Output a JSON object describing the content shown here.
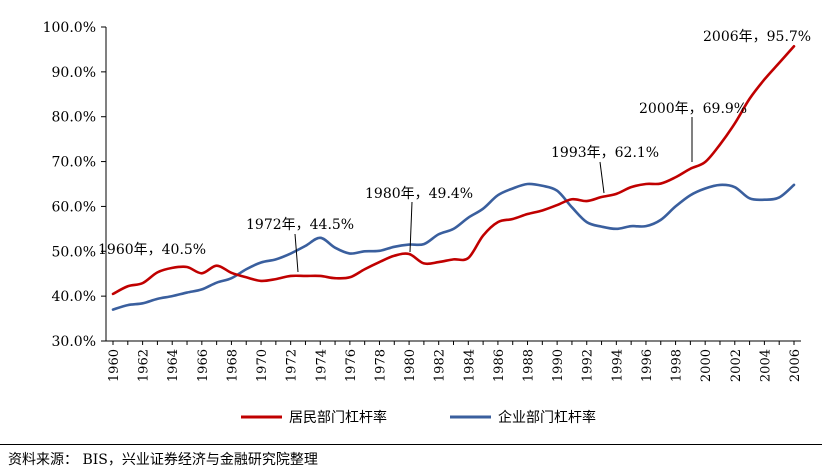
{
  "chart_data": {
    "type": "line",
    "title": "",
    "xlabel": "",
    "ylabel": "",
    "x": [
      1960,
      1961,
      1962,
      1963,
      1964,
      1965,
      1966,
      1967,
      1968,
      1969,
      1970,
      1971,
      1972,
      1973,
      1974,
      1975,
      1976,
      1977,
      1978,
      1979,
      1980,
      1981,
      1982,
      1983,
      1984,
      1985,
      1986,
      1987,
      1988,
      1989,
      1990,
      1991,
      1992,
      1993,
      1994,
      1995,
      1996,
      1997,
      1998,
      1999,
      2000,
      2001,
      2002,
      2003,
      2004,
      2005,
      2006
    ],
    "x_ticks": [
      "1960",
      "1962",
      "1964",
      "1966",
      "1968",
      "1970",
      "1972",
      "1974",
      "1976",
      "1978",
      "1980",
      "1982",
      "1984",
      "1986",
      "1988",
      "1990",
      "1992",
      "1994",
      "1996",
      "1998",
      "2000",
      "2002",
      "2004",
      "2006"
    ],
    "ylim": [
      30,
      100
    ],
    "y_ticks": [
      "30.0%",
      "40.0%",
      "50.0%",
      "60.0%",
      "70.0%",
      "80.0%",
      "90.0%",
      "100.0%"
    ],
    "grid": false,
    "legend_position": "bottom",
    "series": [
      {
        "name": "居民部门杠杆率",
        "color": "#c00000",
        "values": [
          40.5,
          42.2,
          42.9,
          45.3,
          46.3,
          46.5,
          45.1,
          46.8,
          45.2,
          44.2,
          43.4,
          43.8,
          44.5,
          44.5,
          44.5,
          44.0,
          44.2,
          46.0,
          47.6,
          49.0,
          49.4,
          47.3,
          47.6,
          48.2,
          48.5,
          53.5,
          56.5,
          57.2,
          58.3,
          59.1,
          60.3,
          61.6,
          61.2,
          62.1,
          62.8,
          64.3,
          65.0,
          65.1,
          66.5,
          68.4,
          69.9,
          73.8,
          78.5,
          84.0,
          88.3,
          92.0,
          95.7
        ]
      },
      {
        "name": "企业部门杠杆率",
        "color": "#3a5f9e",
        "values": [
          37.0,
          38.0,
          38.4,
          39.4,
          40.0,
          40.8,
          41.5,
          43.0,
          44.0,
          46.0,
          47.5,
          48.2,
          49.5,
          51.2,
          53.0,
          50.8,
          49.5,
          50.0,
          50.1,
          51.0,
          51.5,
          51.6,
          53.8,
          55.0,
          57.5,
          59.5,
          62.5,
          64.0,
          65.0,
          64.6,
          63.5,
          59.8,
          56.5,
          55.5,
          55.0,
          55.6,
          55.6,
          57.0,
          60.0,
          62.5,
          64.0,
          64.8,
          64.3,
          61.8,
          61.5,
          62.0,
          64.8
        ]
      }
    ],
    "annotations": [
      {
        "text": "1960年，40.5%",
        "x": 1960,
        "y": 40.5,
        "series": 0
      },
      {
        "text": "1972年，44.5%",
        "x": 1972,
        "y": 44.5,
        "series": 0
      },
      {
        "text": "1980年，49.4%",
        "x": 1980,
        "y": 49.4,
        "series": 0
      },
      {
        "text": "1993年，62.1%",
        "x": 1993,
        "y": 62.1,
        "series": 0
      },
      {
        "text": "2000年，69.9%",
        "x": 2000,
        "y": 69.9,
        "series": 0
      },
      {
        "text": "2006年，95.7%",
        "x": 2006,
        "y": 95.7,
        "series": 0
      }
    ]
  },
  "source_note": "资料来源：  BIS，兴业证券经济与金融研究院整理"
}
